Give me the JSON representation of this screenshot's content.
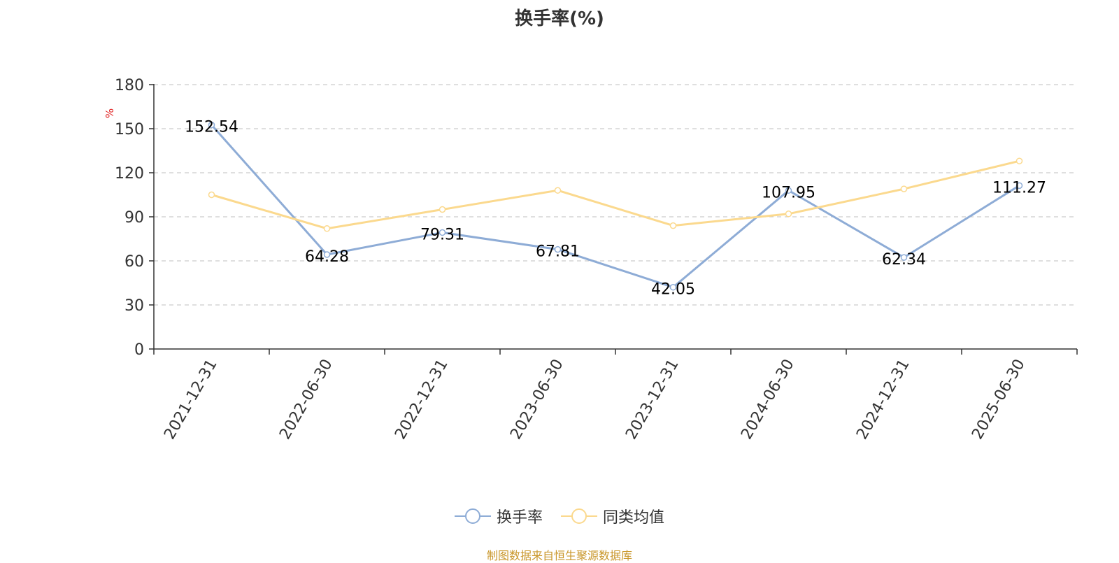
{
  "chart_data": {
    "type": "line",
    "title": "换手率(%)",
    "ylabel": "%",
    "xlabel": "",
    "categories": [
      "2021-12-31",
      "2022-06-30",
      "2022-12-31",
      "2023-06-30",
      "2023-12-31",
      "2024-06-30",
      "2024-12-31",
      "2025-06-30"
    ],
    "ylim": [
      0,
      180
    ],
    "yticks": [
      0,
      30,
      60,
      90,
      120,
      150,
      180
    ],
    "grid": true,
    "legend_position": "bottom",
    "series": [
      {
        "name": "换手率",
        "color": "#8eacd6",
        "values": [
          152.54,
          64.28,
          79.31,
          67.81,
          42.05,
          107.95,
          62.34,
          111.27
        ],
        "show_labels": true
      },
      {
        "name": "同类均值",
        "color": "#fbd98e",
        "values": [
          105,
          82,
          95,
          108,
          84,
          92,
          109,
          128
        ],
        "show_labels": false
      }
    ]
  },
  "source_text": "制图数据来自恒生聚源数据库",
  "colors": {
    "axis": "#333333",
    "grid": "#cccccc",
    "ylabel": "#e02020",
    "source": "#c9972b"
  }
}
